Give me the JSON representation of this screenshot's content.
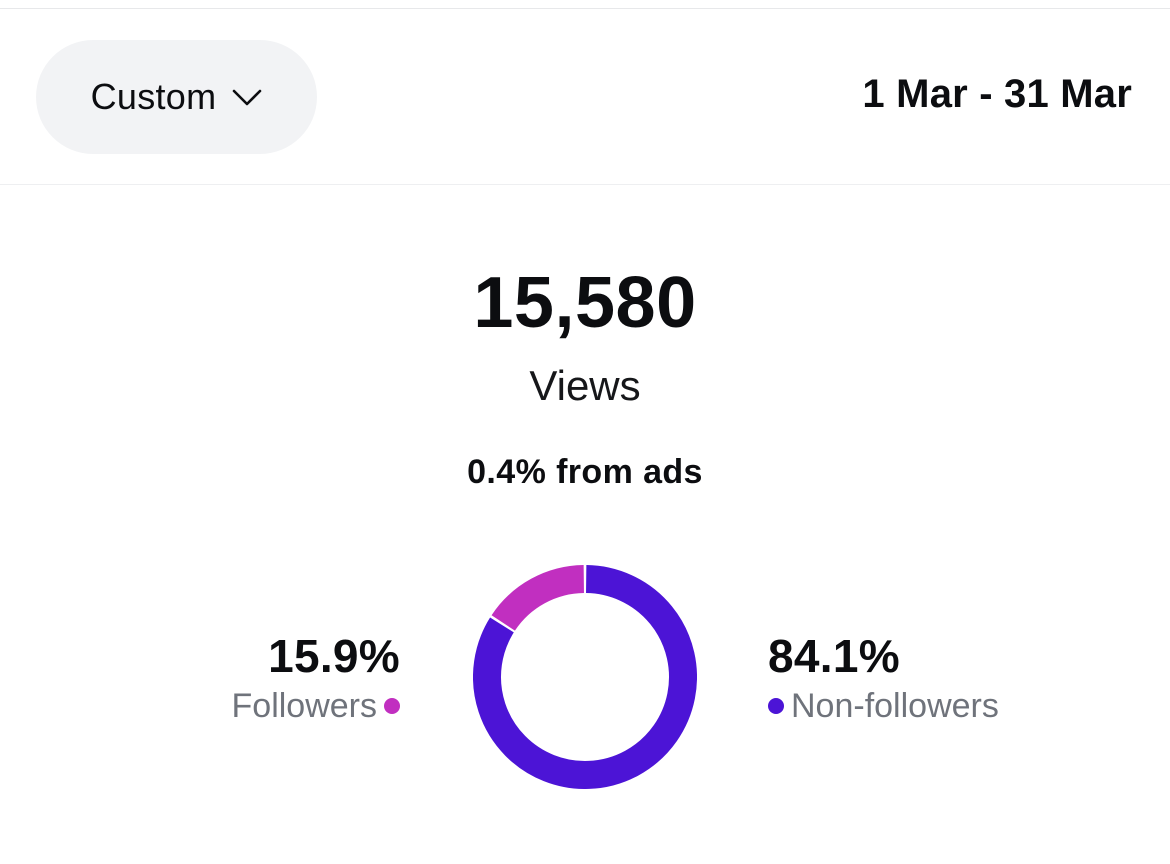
{
  "filter": {
    "selected": "Custom",
    "icon": "chevron-down-icon"
  },
  "date_range": "1 Mar - 31 Mar",
  "summary": {
    "total": "15,580",
    "metric_label": "Views",
    "ads_share": "0.4% from ads"
  },
  "colors": {
    "followers": "#c12fc0",
    "non_followers": "#4c14d6",
    "pill_bg": "#f2f3f5"
  },
  "chart_data": {
    "type": "pie",
    "style": "donut",
    "slices": [
      {
        "label": "Followers",
        "value": 15.9,
        "value_text": "15.9%",
        "color": "#c12fc0"
      },
      {
        "label": "Non-followers",
        "value": 84.1,
        "value_text": "84.1%",
        "color": "#4c14d6"
      }
    ]
  }
}
